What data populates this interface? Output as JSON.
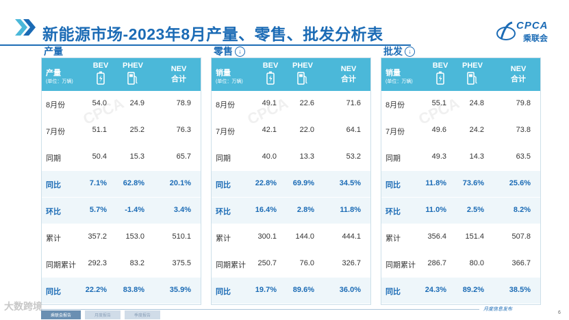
{
  "title": "新能源市场-2023年8月产量、零售、批发分析表",
  "logo": {
    "abbr": "CPCA",
    "name": "乘联会"
  },
  "columns": {
    "bev": "BEV",
    "phev": "PHEV",
    "nev_top": "NEV",
    "nev_bottom": "合计",
    "unit": "(单位：万辆)"
  },
  "panels": [
    {
      "heading": "产量",
      "has_arrow": false,
      "header_label": "产量",
      "rows": [
        {
          "label": "8月份",
          "bev": "54.0",
          "phev": "24.9",
          "nev": "78.9",
          "hl": false
        },
        {
          "label": "7月份",
          "bev": "51.1",
          "phev": "25.2",
          "nev": "76.3",
          "hl": false
        },
        {
          "label": "同期",
          "bev": "50.4",
          "phev": "15.3",
          "nev": "65.7",
          "hl": false
        },
        {
          "label": "同比",
          "bev": "7.1%",
          "phev": "62.8%",
          "nev": "20.1%",
          "hl": true
        },
        {
          "label": "环比",
          "bev": "5.7%",
          "phev": "-1.4%",
          "nev": "3.4%",
          "hl": true
        },
        {
          "label": "累计",
          "bev": "357.2",
          "phev": "153.0",
          "nev": "510.1",
          "hl": false
        },
        {
          "label": "同期累计",
          "bev": "292.3",
          "phev": "83.2",
          "nev": "375.5",
          "hl": false
        },
        {
          "label": "同比",
          "bev": "22.2%",
          "phev": "83.8%",
          "nev": "35.9%",
          "hl": true
        }
      ]
    },
    {
      "heading": "零售",
      "has_arrow": true,
      "header_label": "销量",
      "rows": [
        {
          "label": "8月份",
          "bev": "49.1",
          "phev": "22.6",
          "nev": "71.6",
          "hl": false
        },
        {
          "label": "7月份",
          "bev": "42.1",
          "phev": "22.0",
          "nev": "64.1",
          "hl": false
        },
        {
          "label": "同期",
          "bev": "40.0",
          "phev": "13.3",
          "nev": "53.2",
          "hl": false
        },
        {
          "label": "同比",
          "bev": "22.8%",
          "phev": "69.9%",
          "nev": "34.5%",
          "hl": true
        },
        {
          "label": "环比",
          "bev": "16.4%",
          "phev": "2.8%",
          "nev": "11.8%",
          "hl": true
        },
        {
          "label": "累计",
          "bev": "300.1",
          "phev": "144.0",
          "nev": "444.1",
          "hl": false
        },
        {
          "label": "同期累计",
          "bev": "250.7",
          "phev": "76.0",
          "nev": "326.7",
          "hl": false
        },
        {
          "label": "同比",
          "bev": "19.7%",
          "phev": "89.6%",
          "nev": "36.0%",
          "hl": true
        }
      ]
    },
    {
      "heading": "批发",
      "has_arrow": true,
      "header_label": "销量",
      "rows": [
        {
          "label": "8月份",
          "bev": "55.1",
          "phev": "24.8",
          "nev": "79.8",
          "hl": false
        },
        {
          "label": "7月份",
          "bev": "49.6",
          "phev": "24.2",
          "nev": "73.8",
          "hl": false
        },
        {
          "label": "同期",
          "bev": "49.3",
          "phev": "14.3",
          "nev": "63.5",
          "hl": false
        },
        {
          "label": "同比",
          "bev": "11.8%",
          "phev": "73.6%",
          "nev": "25.6%",
          "hl": true
        },
        {
          "label": "环比",
          "bev": "11.0%",
          "phev": "2.5%",
          "nev": "8.2%",
          "hl": true
        },
        {
          "label": "累计",
          "bev": "356.4",
          "phev": "151.4",
          "nev": "507.8",
          "hl": false
        },
        {
          "label": "同期累计",
          "bev": "286.7",
          "phev": "80.0",
          "nev": "366.7",
          "hl": false
        },
        {
          "label": "同比",
          "bev": "24.3%",
          "phev": "89.2%",
          "nev": "38.5%",
          "hl": true
        }
      ]
    }
  ],
  "footer": {
    "brand": "大数跨境",
    "tabs": [
      "乘联会报告",
      "月度报告",
      "季度报告"
    ],
    "right": "月度信息发布",
    "page": "6"
  },
  "colors": {
    "primary": "#1b6bb5",
    "header_bg": "#4bb8d9",
    "alt_row": "#eef6fa"
  }
}
